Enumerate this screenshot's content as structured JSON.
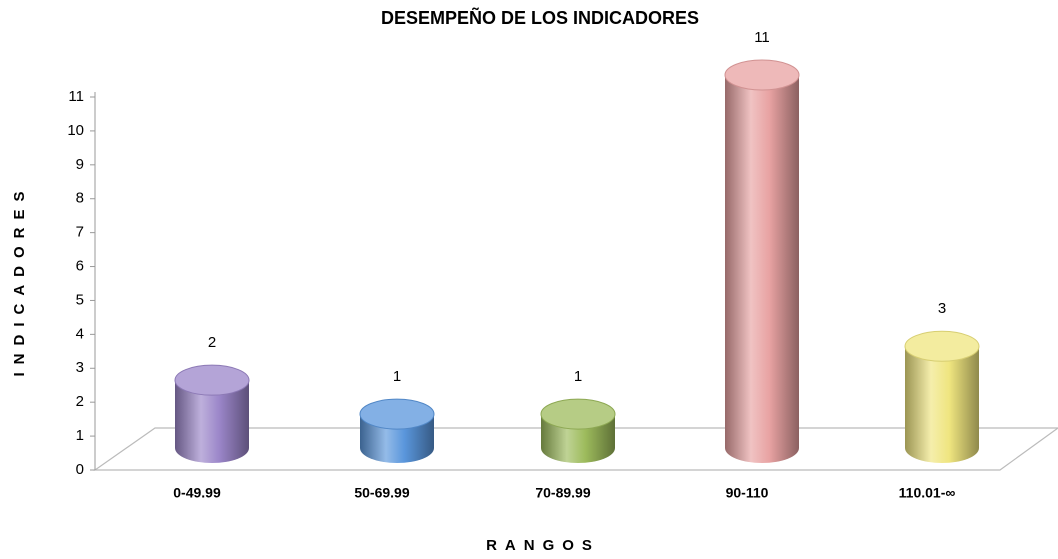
{
  "chart_data": {
    "type": "bar3d",
    "title": "DESEMPEÑO DE LOS INDICADORES",
    "x_label": "RANGOS",
    "y_label": "INDICADORES",
    "categories": [
      "0-49.99",
      "50-69.99",
      "70-89.99",
      "90-110",
      "110.01-∞"
    ],
    "values": [
      2,
      1,
      1,
      11,
      3
    ],
    "colors": [
      "#9b86c9",
      "#5a96dc",
      "#9dbb5c",
      "#e8a2a2",
      "#efe57f"
    ],
    "ylim": [
      0,
      11
    ],
    "yticks": [
      0,
      1,
      2,
      3,
      4,
      5,
      6,
      7,
      8,
      9,
      10,
      11
    ],
    "grid": false
  }
}
